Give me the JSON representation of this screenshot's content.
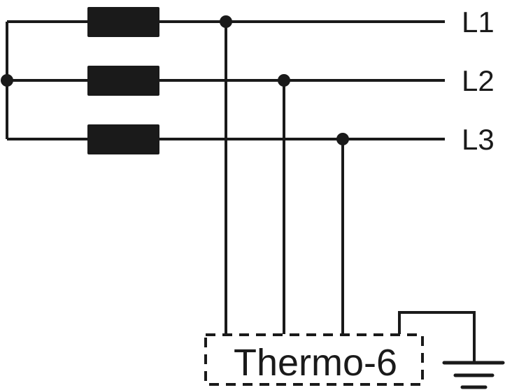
{
  "lines": [
    {
      "label": "L1"
    },
    {
      "label": "L2"
    },
    {
      "label": "L3"
    }
  ],
  "device": {
    "label": "Thermo-6",
    "border_style": "dashed"
  },
  "ground": {
    "icon": "ground-icon"
  },
  "colors": {
    "stroke": "#1a1a1a",
    "background": "#ffffff"
  }
}
